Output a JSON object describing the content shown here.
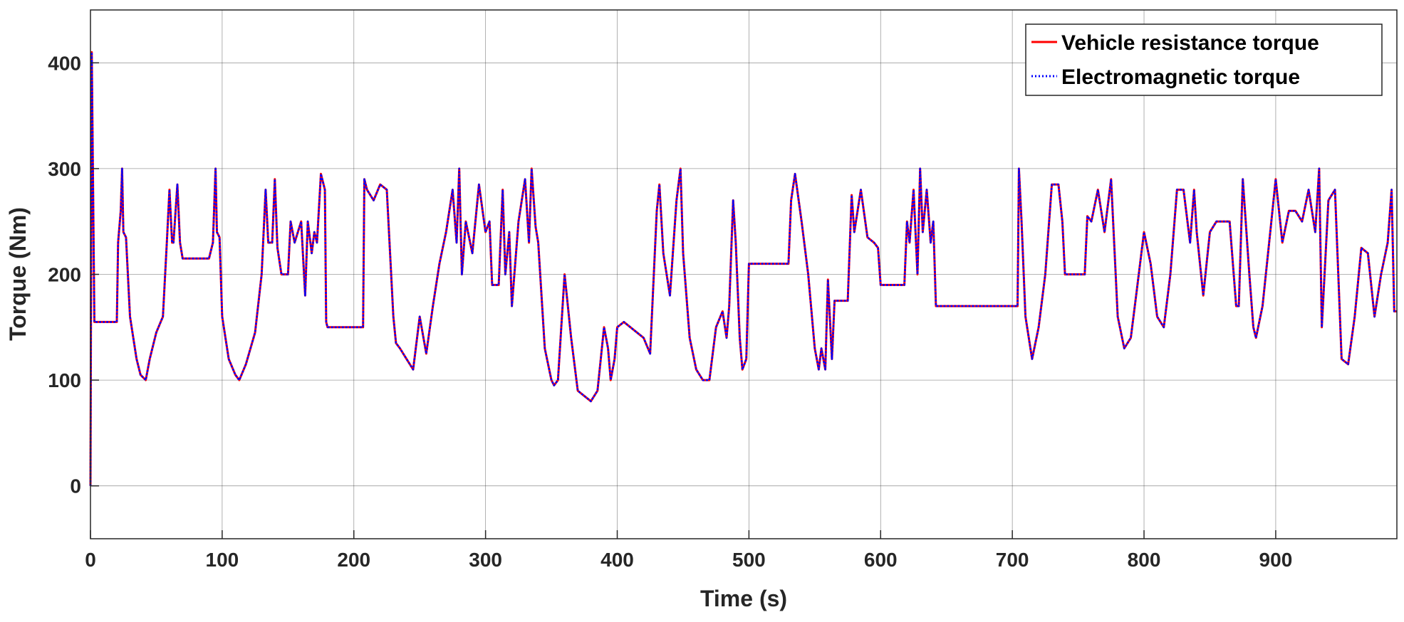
{
  "chart_data": {
    "type": "line",
    "xlabel": "Time (s)",
    "ylabel": "Torque (Nm)",
    "xlim": [
      0,
      992
    ],
    "ylim": [
      -50,
      450
    ],
    "xticks": [
      0,
      100,
      200,
      300,
      400,
      500,
      600,
      700,
      800,
      900
    ],
    "yticks": [
      0,
      100,
      200,
      300,
      400
    ],
    "grid": true,
    "legend_position": "top-right",
    "series": [
      {
        "name": "Vehicle resistance torque",
        "color": "#ff0000",
        "style": "solid",
        "x": [
          0,
          1,
          3,
          20,
          21,
          23,
          24,
          25,
          27,
          30,
          35,
          38,
          42,
          45,
          50,
          55,
          58,
          60,
          62,
          63,
          66,
          68,
          70,
          71,
          72,
          90,
          93,
          95,
          96,
          98,
          100,
          105,
          110,
          113,
          118,
          125,
          130,
          133,
          135,
          138,
          140,
          142,
          145,
          150,
          152,
          155,
          160,
          163,
          165,
          168,
          170,
          172,
          175,
          178,
          179,
          180,
          200,
          207,
          208,
          210,
          215,
          220,
          225,
          230,
          232,
          235,
          240,
          245,
          250,
          255,
          260,
          265,
          270,
          275,
          278,
          280,
          282,
          285,
          290,
          295,
          300,
          303,
          305,
          310,
          313,
          315,
          318,
          320,
          325,
          330,
          333,
          335,
          338,
          340,
          345,
          350,
          352,
          355,
          360,
          365,
          370,
          375,
          380,
          385,
          390,
          393,
          395,
          398,
          400,
          405,
          410,
          415,
          420,
          425,
          430,
          432,
          435,
          440,
          445,
          448,
          450,
          455,
          460,
          465,
          470,
          475,
          480,
          483,
          485,
          488,
          490,
          493,
          495,
          498,
          500,
          510,
          520,
          525,
          530,
          532,
          535,
          540,
          545,
          550,
          553,
          555,
          558,
          560,
          563,
          565,
          570,
          575,
          578,
          580,
          585,
          590,
          595,
          598,
          600,
          610,
          618,
          620,
          622,
          625,
          628,
          630,
          632,
          635,
          638,
          640,
          642,
          645,
          660,
          680,
          700,
          704,
          705,
          707,
          710,
          715,
          720,
          725,
          730,
          735,
          738,
          740,
          745,
          750,
          755,
          757,
          760,
          765,
          770,
          775,
          780,
          785,
          790,
          795,
          800,
          805,
          810,
          815,
          820,
          825,
          830,
          835,
          838,
          840,
          845,
          850,
          855,
          860,
          865,
          870,
          872,
          875,
          880,
          883,
          885,
          890,
          895,
          900,
          905,
          910,
          915,
          920,
          925,
          930,
          933,
          935,
          940,
          945,
          950,
          955,
          960,
          965,
          970,
          975,
          980,
          985,
          988,
          990,
          992
        ],
        "values": [
          0,
          410,
          155,
          155,
          230,
          260,
          300,
          240,
          235,
          160,
          120,
          105,
          100,
          120,
          145,
          160,
          230,
          280,
          230,
          230,
          285,
          230,
          215,
          215,
          215,
          215,
          230,
          300,
          240,
          235,
          160,
          120,
          105,
          100,
          115,
          145,
          200,
          280,
          230,
          230,
          290,
          225,
          200,
          200,
          250,
          230,
          250,
          180,
          250,
          220,
          240,
          230,
          295,
          280,
          155,
          150,
          150,
          150,
          290,
          280,
          270,
          285,
          280,
          160,
          135,
          130,
          120,
          110,
          160,
          125,
          170,
          210,
          240,
          280,
          230,
          300,
          200,
          250,
          220,
          285,
          240,
          250,
          190,
          190,
          280,
          200,
          240,
          170,
          250,
          290,
          230,
          300,
          245,
          230,
          130,
          100,
          95,
          100,
          200,
          140,
          90,
          85,
          80,
          90,
          150,
          130,
          100,
          120,
          150,
          155,
          150,
          145,
          140,
          125,
          260,
          285,
          220,
          180,
          270,
          300,
          220,
          140,
          110,
          100,
          100,
          150,
          165,
          140,
          170,
          270,
          230,
          140,
          110,
          120,
          210,
          210,
          210,
          210,
          210,
          270,
          295,
          250,
          200,
          130,
          110,
          130,
          110,
          195,
          120,
          175,
          175,
          175,
          275,
          240,
          280,
          235,
          230,
          225,
          190,
          190,
          190,
          250,
          230,
          280,
          200,
          300,
          240,
          280,
          230,
          250,
          170,
          170,
          170,
          170,
          170,
          170,
          300,
          250,
          160,
          120,
          150,
          200,
          285,
          285,
          250,
          200,
          200,
          200,
          200,
          255,
          250,
          280,
          240,
          290,
          160,
          130,
          140,
          190,
          240,
          210,
          160,
          150,
          200,
          280,
          280,
          230,
          280,
          240,
          180,
          240,
          250,
          250,
          250,
          170,
          170,
          290,
          200,
          150,
          140,
          170,
          230,
          290,
          230,
          260,
          260,
          250,
          280,
          240,
          300,
          150,
          270,
          280,
          120,
          115,
          160,
          225,
          220,
          160,
          200,
          230,
          280,
          165,
          165
        ]
      },
      {
        "name": "Electromagnetic torque",
        "color": "#0000ff",
        "style": "dotted",
        "x": [
          0,
          1,
          3,
          20,
          21,
          23,
          24,
          25,
          27,
          30,
          35,
          38,
          42,
          45,
          50,
          55,
          58,
          60,
          62,
          63,
          66,
          68,
          70,
          71,
          72,
          90,
          93,
          95,
          96,
          98,
          100,
          105,
          110,
          113,
          118,
          125,
          130,
          133,
          135,
          138,
          140,
          142,
          145,
          150,
          152,
          155,
          160,
          163,
          165,
          168,
          170,
          172,
          175,
          178,
          179,
          180,
          200,
          207,
          208,
          210,
          215,
          220,
          225,
          230,
          232,
          235,
          240,
          245,
          250,
          255,
          260,
          265,
          270,
          275,
          278,
          280,
          282,
          285,
          290,
          295,
          300,
          303,
          305,
          310,
          313,
          315,
          318,
          320,
          325,
          330,
          333,
          335,
          338,
          340,
          345,
          350,
          352,
          355,
          360,
          365,
          370,
          375,
          380,
          385,
          390,
          393,
          395,
          398,
          400,
          405,
          410,
          415,
          420,
          425,
          430,
          432,
          435,
          440,
          445,
          448,
          450,
          455,
          460,
          465,
          470,
          475,
          480,
          483,
          485,
          488,
          490,
          493,
          495,
          498,
          500,
          510,
          520,
          525,
          530,
          532,
          535,
          540,
          545,
          550,
          553,
          555,
          558,
          560,
          563,
          565,
          570,
          575,
          578,
          580,
          585,
          590,
          595,
          598,
          600,
          610,
          618,
          620,
          622,
          625,
          628,
          630,
          632,
          635,
          638,
          640,
          642,
          645,
          660,
          680,
          700,
          704,
          705,
          707,
          710,
          715,
          720,
          725,
          730,
          735,
          738,
          740,
          745,
          750,
          755,
          757,
          760,
          765,
          770,
          775,
          780,
          785,
          790,
          795,
          800,
          805,
          810,
          815,
          820,
          825,
          830,
          835,
          838,
          840,
          845,
          850,
          855,
          860,
          865,
          870,
          872,
          875,
          880,
          883,
          885,
          890,
          895,
          900,
          905,
          910,
          915,
          920,
          925,
          930,
          933,
          935,
          940,
          945,
          950,
          955,
          960,
          965,
          970,
          975,
          980,
          985,
          988,
          990,
          992
        ],
        "values": [
          0,
          410,
          155,
          155,
          230,
          260,
          300,
          240,
          235,
          160,
          120,
          105,
          100,
          120,
          145,
          160,
          230,
          280,
          230,
          230,
          285,
          230,
          215,
          215,
          215,
          215,
          230,
          300,
          240,
          235,
          160,
          120,
          105,
          100,
          115,
          145,
          200,
          280,
          230,
          230,
          290,
          225,
          200,
          200,
          250,
          230,
          250,
          180,
          250,
          220,
          240,
          230,
          295,
          280,
          155,
          150,
          150,
          150,
          290,
          280,
          270,
          285,
          280,
          160,
          135,
          130,
          120,
          110,
          160,
          125,
          170,
          210,
          240,
          280,
          230,
          300,
          200,
          250,
          220,
          285,
          240,
          250,
          190,
          190,
          280,
          200,
          240,
          170,
          250,
          290,
          230,
          300,
          245,
          230,
          130,
          100,
          95,
          100,
          200,
          140,
          90,
          85,
          80,
          90,
          150,
          130,
          100,
          120,
          150,
          155,
          150,
          145,
          140,
          125,
          260,
          285,
          220,
          180,
          270,
          300,
          220,
          140,
          110,
          100,
          100,
          150,
          165,
          140,
          170,
          270,
          230,
          140,
          110,
          120,
          210,
          210,
          210,
          210,
          210,
          270,
          295,
          250,
          200,
          130,
          110,
          130,
          110,
          195,
          120,
          175,
          175,
          175,
          275,
          240,
          280,
          235,
          230,
          225,
          190,
          190,
          190,
          250,
          230,
          280,
          200,
          300,
          240,
          280,
          230,
          250,
          170,
          170,
          170,
          170,
          170,
          170,
          300,
          250,
          160,
          120,
          150,
          200,
          285,
          285,
          250,
          200,
          200,
          200,
          200,
          255,
          250,
          280,
          240,
          290,
          160,
          130,
          140,
          190,
          240,
          210,
          160,
          150,
          200,
          280,
          280,
          230,
          280,
          240,
          180,
          240,
          250,
          250,
          250,
          170,
          170,
          290,
          200,
          150,
          140,
          170,
          230,
          290,
          230,
          260,
          260,
          250,
          280,
          240,
          300,
          150,
          270,
          280,
          120,
          115,
          160,
          225,
          220,
          160,
          200,
          230,
          280,
          165,
          165
        ]
      }
    ]
  }
}
